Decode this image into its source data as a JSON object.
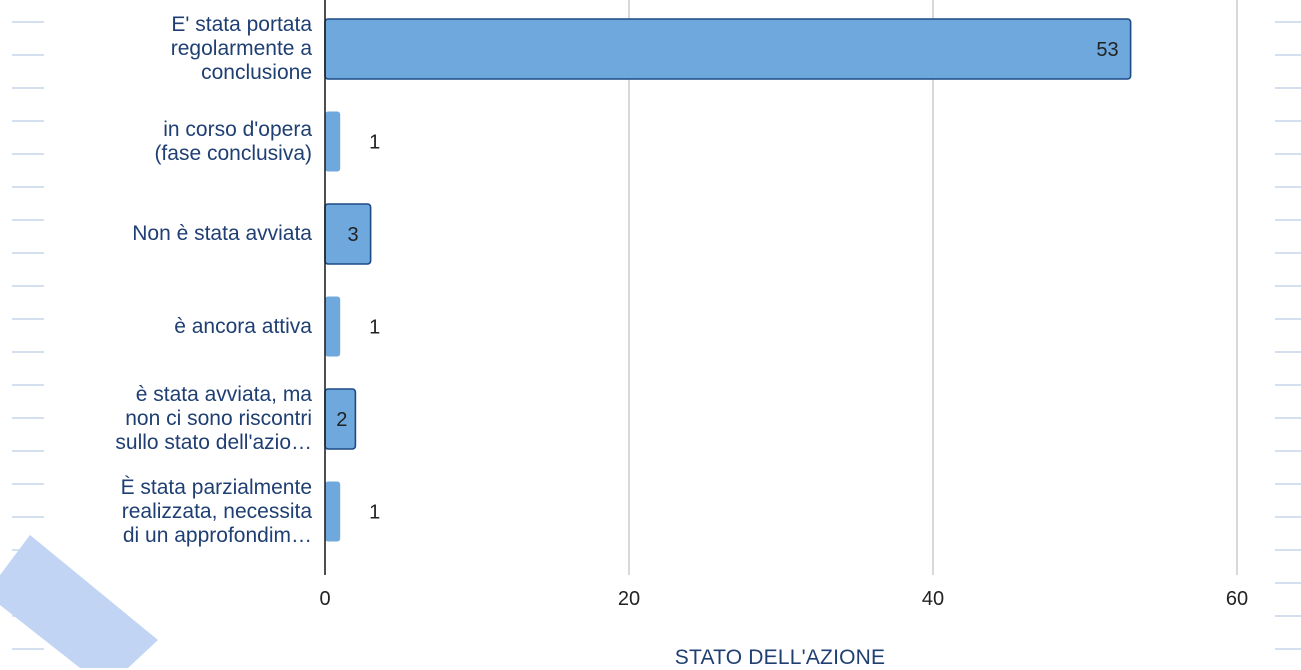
{
  "chart_data": {
    "type": "bar",
    "orientation": "horizontal",
    "categories": [
      "E' stata portata regolarmente a conclusione",
      "in corso d'opera (fase conclusiva)",
      "Non è stata avviata",
      "è ancora attiva",
      "è stata avviata, ma non ci sono riscontri sullo stato dell'azio…",
      "È stata parzialmente realizzata, necessita di un approfondim…"
    ],
    "category_lines": [
      [
        "E' stata portata",
        "regolarmente a",
        "conclusione"
      ],
      [
        "in corso d'opera",
        "(fase conclusiva)"
      ],
      [
        "Non è stata avviata"
      ],
      [
        "è ancora attiva"
      ],
      [
        "è stata avviata, ma",
        "non ci sono riscontri",
        "sullo stato dell'azio…"
      ],
      [
        "È stata parzialmente",
        "realizzata, necessita",
        "di un approfondim…"
      ]
    ],
    "values": [
      53,
      1,
      3,
      1,
      2,
      1
    ],
    "xlabel": "STATO DELL'AZIONE",
    "xlim": [
      0,
      60
    ],
    "xticks": [
      0,
      20,
      40,
      60
    ],
    "grid": true,
    "bar_color": "#6fa8dc",
    "bar_border_color": "#1c4a85",
    "label_color": "#1f3f73"
  }
}
